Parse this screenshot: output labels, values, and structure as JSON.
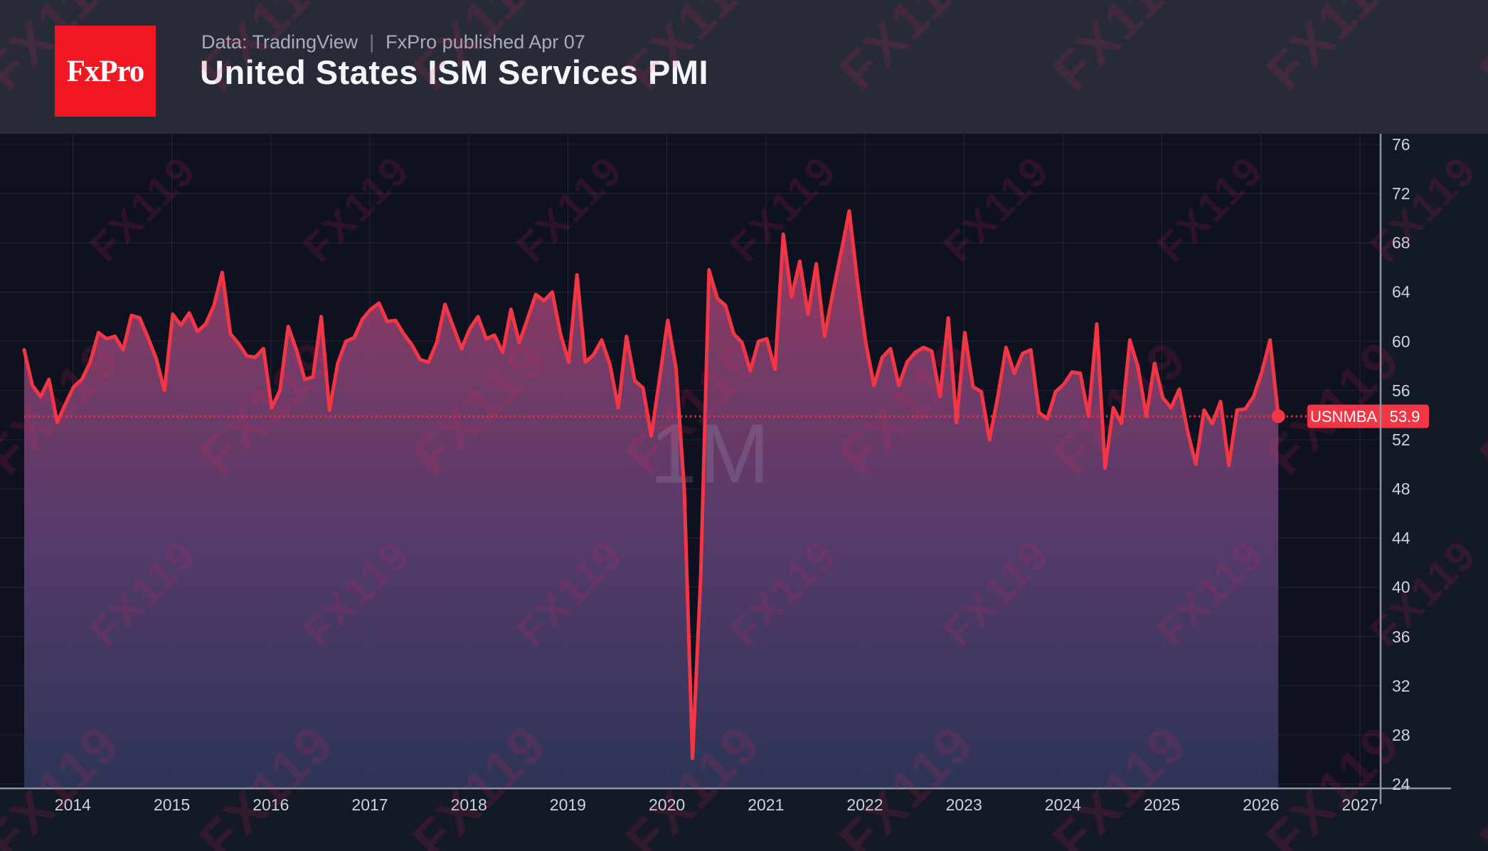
{
  "header": {
    "logo_text": "FxPro",
    "source_label": "Data: TradingView",
    "divider": "|",
    "published_label": "FxPro published Apr 07",
    "title": "United States ISM Services PMI"
  },
  "badge": {
    "symbol": "USNMBA",
    "value": "53.9"
  },
  "watermark": {
    "text": "FX119"
  },
  "chart_data": {
    "type": "area",
    "title": "United States ISM Services PMI",
    "symbol": "USNMBA",
    "interval_watermark": "1M",
    "grid": true,
    "legend_position": "none",
    "xlabel": "",
    "ylabel": "",
    "y_ticks": [
      76,
      72,
      68,
      64,
      60,
      56,
      52,
      48,
      44,
      40,
      36,
      32,
      28,
      24
    ],
    "x_ticks": [
      "2014",
      "2015",
      "2016",
      "2017",
      "2018",
      "2019",
      "2020",
      "2021",
      "2022",
      "2023",
      "2024",
      "2025",
      "2026",
      "2027"
    ],
    "y_range_visible": [
      23.7,
      76.9
    ],
    "last_value": 53.9,
    "series": {
      "name": "USNMBA",
      "start_month": "2013-07",
      "frequency": "monthly",
      "values": [
        59.3,
        56.4,
        55.5,
        56.9,
        53.4,
        54.9,
        56.3,
        56.9,
        58.3,
        60.7,
        60.2,
        60.4,
        59.3,
        62.1,
        61.9,
        60.3,
        58.6,
        56.0,
        62.2,
        61.3,
        62.3,
        60.8,
        61.4,
        62.9,
        65.6,
        60.6,
        59.8,
        58.8,
        58.7,
        59.4,
        54.6,
        56.0,
        61.2,
        59.3,
        56.9,
        57.1,
        62.0,
        54.4,
        58.2,
        60.0,
        60.3,
        61.8,
        62.6,
        63.1,
        61.6,
        61.7,
        60.6,
        59.7,
        58.5,
        58.3,
        59.9,
        63.0,
        61.2,
        59.4,
        61.0,
        62.0,
        60.2,
        60.5,
        59.1,
        62.6,
        59.9,
        61.8,
        63.8,
        63.3,
        64.0,
        60.6,
        58.3,
        65.4,
        58.3,
        58.9,
        60.1,
        58.1,
        54.6,
        60.4,
        56.8,
        56.2,
        52.3,
        56.9,
        61.7,
        57.8,
        48.0,
        26.1,
        41.0,
        65.8,
        63.5,
        62.9,
        60.6,
        59.9,
        57.6,
        60.0,
        60.2,
        57.7,
        68.7,
        63.6,
        66.5,
        62.2,
        66.3,
        60.4,
        63.9,
        67.2,
        70.6,
        64.8,
        59.9,
        56.4,
        58.7,
        59.4,
        56.4,
        58.3,
        59.1,
        59.5,
        59.2,
        55.5,
        61.9,
        53.4,
        60.7,
        56.3,
        55.9,
        52.0,
        55.5,
        59.5,
        57.4,
        59.0,
        59.3,
        54.2,
        53.7,
        55.9,
        56.5,
        57.5,
        57.4,
        53.9,
        61.4,
        49.7,
        54.6,
        53.3,
        60.1,
        57.9,
        53.9,
        58.2,
        55.4,
        54.6,
        56.1,
        52.7,
        50.0,
        54.4,
        53.3,
        55.1,
        49.9,
        54.4,
        54.5,
        55.5,
        57.5,
        60.1,
        53.9
      ]
    }
  },
  "colors": {
    "accent_red": "#f23645",
    "header_bg": "#272b38",
    "plot_bg": "#0e1120",
    "panel_bg": "#141927",
    "grid": "rgba(173,177,196,0.12)",
    "axis_line": "#9094a0",
    "axis_text": "#ced2db",
    "fill_top": "#a83b60",
    "fill_mid1": "#7a3d6b",
    "fill_mid2": "#563c6e",
    "fill_bottom": "#2f3659",
    "interval_watermark_color": "rgba(190,196,216,0.17)",
    "watermark_color": "rgba(236,32,88,0.14)",
    "logo_red": "#f01722",
    "badge_text": "#ffffff"
  }
}
